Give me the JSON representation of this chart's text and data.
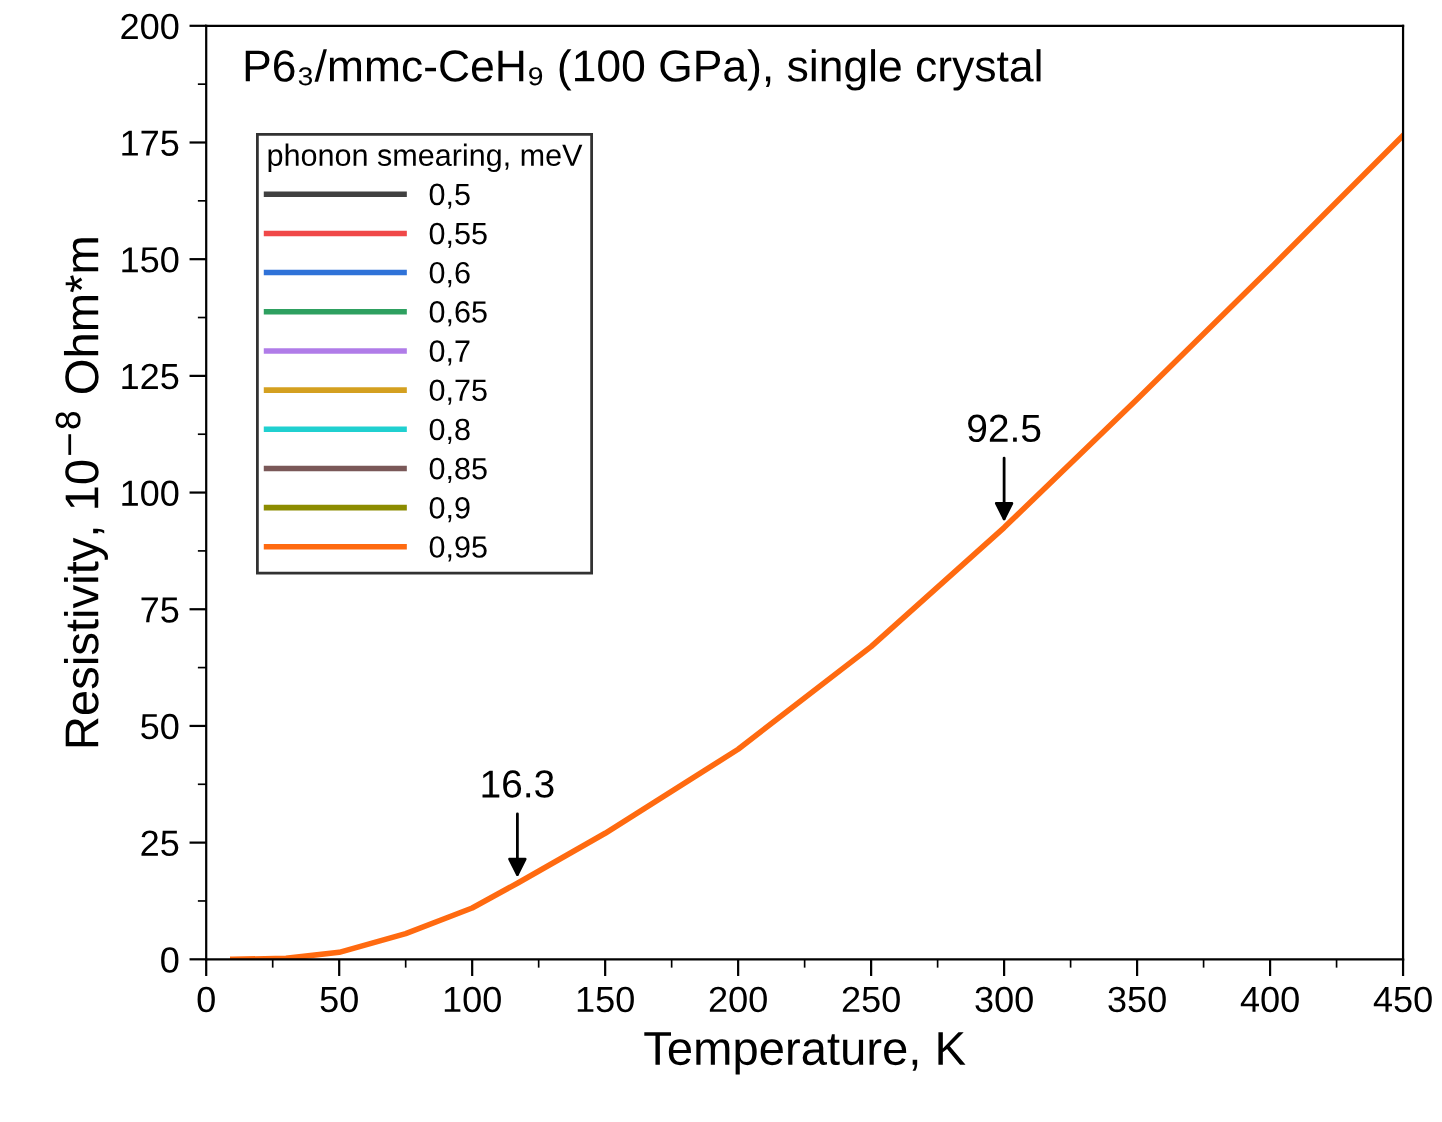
{
  "chart_data": {
    "type": "line",
    "title": "P6₃/mmc-CeH₉ (100 GPa), single crystal",
    "xlabel": "Temperature, K",
    "ylabel": "Resistivity, 10$^{−8}$ Ohm*m",
    "legend_title": "phonon smearing, meV",
    "x": [
      10,
      30,
      50,
      75,
      100,
      117,
      150,
      200,
      250,
      300,
      350,
      400,
      450
    ],
    "series": [
      {
        "name": "0,5",
        "color": "#404040",
        "values": [
          null,
          null,
          null,
          null,
          null,
          null,
          null,
          null,
          null,
          null,
          null,
          null,
          null
        ]
      },
      {
        "name": "0,55",
        "color": "#f04848",
        "values": [
          null,
          null,
          null,
          null,
          null,
          null,
          null,
          null,
          null,
          null,
          null,
          null,
          null
        ]
      },
      {
        "name": "0,6",
        "color": "#2f72d8",
        "values": [
          null,
          null,
          null,
          null,
          null,
          null,
          null,
          null,
          null,
          null,
          null,
          null,
          null
        ]
      },
      {
        "name": "0,65",
        "color": "#2ea060",
        "values": [
          null,
          null,
          null,
          null,
          null,
          null,
          null,
          null,
          null,
          null,
          null,
          null,
          null
        ]
      },
      {
        "name": "0,7",
        "color": "#b07ce8",
        "values": [
          null,
          null,
          null,
          null,
          null,
          null,
          null,
          null,
          null,
          null,
          null,
          null,
          null
        ]
      },
      {
        "name": "0,75",
        "color": "#d4a020",
        "values": [
          null,
          null,
          null,
          null,
          null,
          null,
          null,
          null,
          null,
          null,
          null,
          null,
          null
        ]
      },
      {
        "name": "0,8",
        "color": "#20d0d0",
        "values": [
          null,
          null,
          null,
          null,
          null,
          null,
          null,
          null,
          null,
          null,
          null,
          null,
          null
        ]
      },
      {
        "name": "0,85",
        "color": "#7a5858",
        "values": [
          null,
          null,
          null,
          null,
          null,
          null,
          null,
          null,
          null,
          null,
          null,
          null,
          null
        ]
      },
      {
        "name": "0,9",
        "color": "#8c8c00",
        "values": [
          null,
          null,
          null,
          null,
          null,
          null,
          null,
          null,
          null,
          null,
          null,
          null,
          null
        ]
      },
      {
        "name": "0,95",
        "color": "#ff6a10",
        "values": [
          0,
          0.2,
          1.5,
          5.5,
          11,
          16.3,
          27,
          45,
          67,
          92.5,
          120,
          148,
          176.5
        ]
      }
    ],
    "annotations": [
      {
        "text": "16.3",
        "x": 117,
        "y": 16.3
      },
      {
        "text": "92.5",
        "x": 300,
        "y": 92.5
      }
    ],
    "xlim": [
      0,
      450
    ],
    "xticks": [
      0,
      50,
      100,
      150,
      200,
      250,
      300,
      350,
      400,
      450
    ],
    "ylim": [
      0,
      200
    ],
    "yticks": [
      0,
      25,
      50,
      75,
      100,
      125,
      150,
      175,
      200
    ],
    "legend": "top left",
    "grid": false,
    "marker": "none",
    "line_style": "solid"
  }
}
